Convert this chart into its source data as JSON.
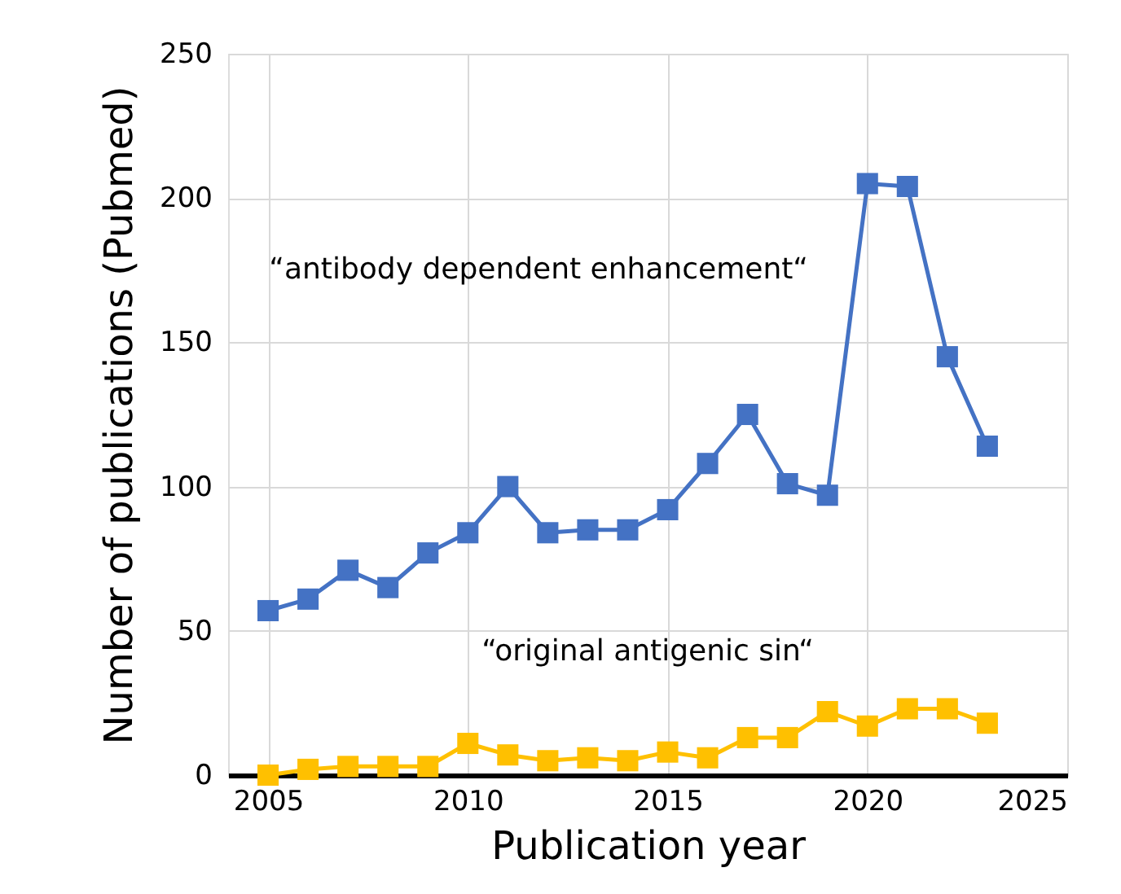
{
  "chart_data": {
    "type": "line",
    "xlabel": "Publication year",
    "ylabel": "Number of publications (Pubmed)",
    "x": [
      2005,
      2006,
      2007,
      2008,
      2009,
      2010,
      2011,
      2012,
      2013,
      2014,
      2015,
      2016,
      2017,
      2018,
      2019,
      2020,
      2021,
      2022,
      2023
    ],
    "series": [
      {
        "name": "“antibody dependent enhancement“",
        "color": "#4472c4",
        "values": [
          57,
          61,
          71,
          65,
          77,
          84,
          100,
          84,
          85,
          85,
          92,
          108,
          125,
          101,
          97,
          205,
          204,
          145,
          114
        ]
      },
      {
        "name": "“original antigenic sin“",
        "color": "#ffc000",
        "values": [
          0,
          2,
          3,
          3,
          3,
          11,
          7,
          5,
          6,
          5,
          8,
          6,
          13,
          13,
          22,
          17,
          23,
          23,
          18
        ]
      }
    ],
    "xlim": [
      2004,
      2025
    ],
    "xticks": [
      2005,
      2010,
      2015,
      2020,
      2025
    ],
    "ylim": [
      0,
      250
    ],
    "yticks": [
      0,
      50,
      100,
      150,
      200,
      250
    ],
    "grid": true,
    "marker": "square",
    "line_style": "solid"
  }
}
